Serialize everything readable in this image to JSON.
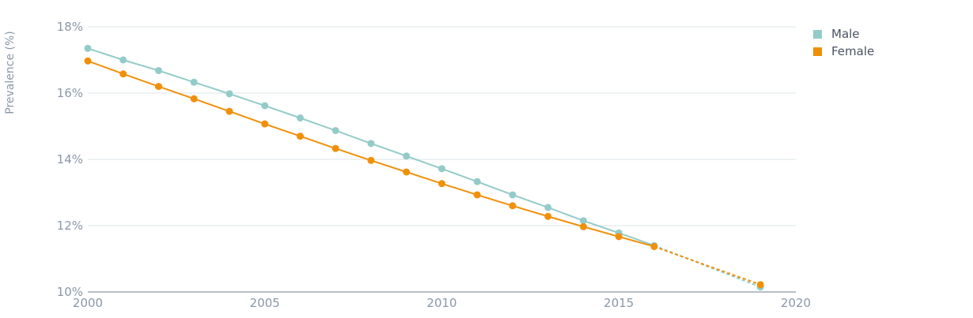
{
  "chart_data": {
    "type": "line",
    "title": "",
    "xlabel": "",
    "ylabel": "Prevalence (%)",
    "xlim": [
      2000,
      2020
    ],
    "ylim": [
      10,
      18
    ],
    "x_ticks": [
      "2000",
      "2005",
      "2010",
      "2015",
      "2020"
    ],
    "y_ticks": [
      "10%",
      "12%",
      "14%",
      "16%",
      "18%"
    ],
    "grid": "horizontal",
    "legend_position": "top-right",
    "series": [
      {
        "name": "Male",
        "color": "#93cbc9",
        "x": [
          2000,
          2001,
          2002,
          2003,
          2004,
          2005,
          2006,
          2007,
          2008,
          2009,
          2010,
          2011,
          2012,
          2013,
          2014,
          2015,
          2016
        ],
        "y": [
          17.35,
          17.0,
          16.68,
          16.33,
          15.98,
          15.62,
          15.25,
          14.87,
          14.48,
          14.1,
          13.72,
          13.33,
          12.93,
          12.55,
          12.15,
          11.78,
          11.4
        ],
        "projection": {
          "x": [
            2016,
            2019
          ],
          "y": [
            11.4,
            10.15
          ]
        }
      },
      {
        "name": "Female",
        "color": "#f0900a",
        "x": [
          2000,
          2001,
          2002,
          2003,
          2004,
          2005,
          2006,
          2007,
          2008,
          2009,
          2010,
          2011,
          2012,
          2013,
          2014,
          2015,
          2016
        ],
        "y": [
          16.97,
          16.58,
          16.2,
          15.83,
          15.45,
          15.07,
          14.7,
          14.33,
          13.97,
          13.62,
          13.27,
          12.93,
          12.6,
          12.28,
          11.97,
          11.67,
          11.37
        ],
        "projection": {
          "x": [
            2016,
            2019
          ],
          "y": [
            11.37,
            10.22
          ]
        }
      }
    ]
  },
  "legend": {
    "items": [
      {
        "label": "Male",
        "color": "#93cbc9"
      },
      {
        "label": "Female",
        "color": "#f0900a"
      }
    ]
  }
}
